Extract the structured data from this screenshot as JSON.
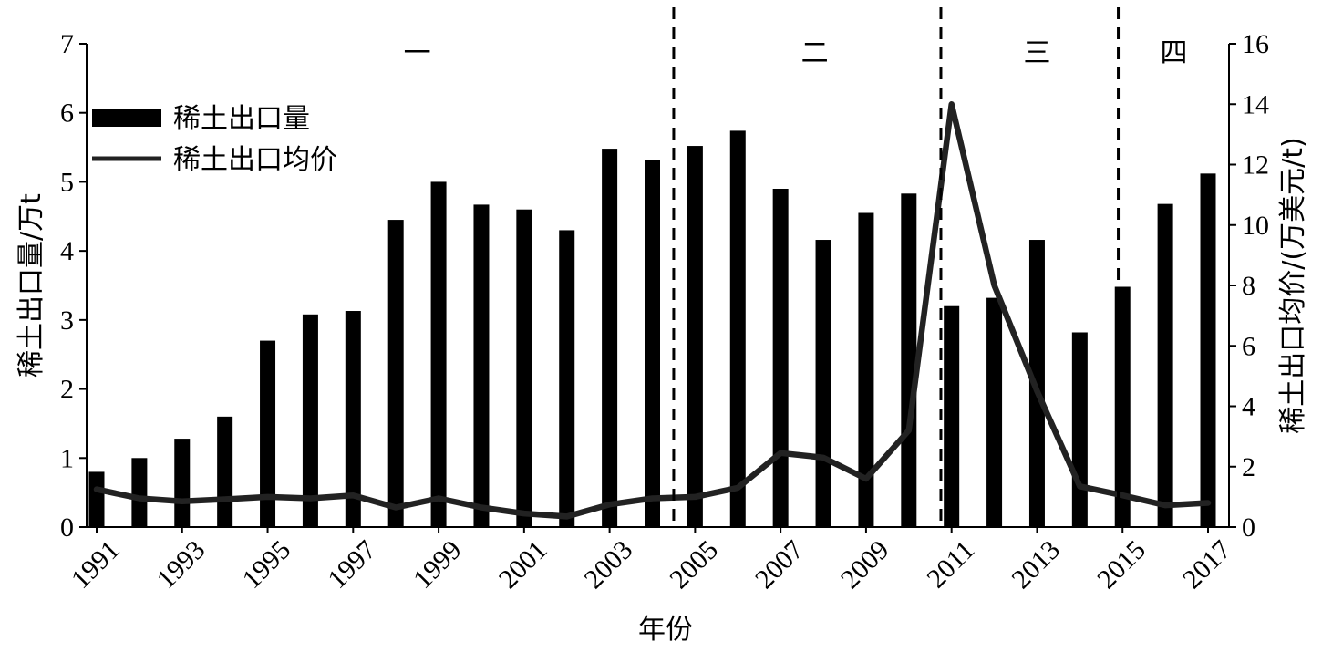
{
  "chart_data": {
    "type": "bar+line",
    "categories": [
      "1991",
      "1992",
      "1993",
      "1994",
      "1995",
      "1996",
      "1997",
      "1998",
      "1999",
      "2000",
      "2001",
      "2002",
      "2003",
      "2004",
      "2005",
      "2006",
      "2007",
      "2008",
      "2009",
      "2010",
      "2011",
      "2012",
      "2013",
      "2014",
      "2015",
      "2016",
      "2017"
    ],
    "x_tick_labels": [
      "1991",
      "1993",
      "1995",
      "1997",
      "1999",
      "2001",
      "2003",
      "2005",
      "2007",
      "2009",
      "2011",
      "2013",
      "2015",
      "2017"
    ],
    "series": [
      {
        "name": "稀土出口量",
        "type": "bar",
        "axis": "left",
        "color": "#000000",
        "values": [
          0.8,
          1.0,
          1.28,
          1.6,
          2.7,
          3.08,
          3.13,
          4.45,
          5.0,
          4.67,
          4.6,
          4.3,
          5.48,
          5.32,
          5.52,
          5.74,
          4.9,
          4.16,
          4.55,
          4.83,
          3.2,
          3.32,
          4.16,
          2.82,
          3.48,
          4.68,
          5.12
        ]
      },
      {
        "name": "稀土出口均价",
        "type": "line",
        "axis": "right",
        "color": "#222222",
        "values": [
          1.25,
          0.95,
          0.85,
          0.92,
          1.0,
          0.95,
          1.05,
          0.65,
          0.95,
          0.65,
          0.45,
          0.35,
          0.75,
          0.95,
          1.0,
          1.3,
          2.45,
          2.3,
          1.6,
          3.2,
          14.0,
          8.0,
          4.5,
          1.35,
          1.05,
          0.72,
          0.8
        ]
      }
    ],
    "xlabel": "年份",
    "ylabel_left": "稀土出口量/万t",
    "ylabel_right": "稀土出口均价/(万美元/t)",
    "ylim_left": [
      0,
      7
    ],
    "ylim_right": [
      0,
      16
    ],
    "yticks_left": [
      0,
      1,
      2,
      3,
      4,
      5,
      6,
      7
    ],
    "yticks_right": [
      0,
      2,
      4,
      6,
      8,
      10,
      12,
      14,
      16
    ],
    "phases": [
      {
        "label": "一",
        "year_center": 1998.5
      },
      {
        "label": "二",
        "year_center": 2007.8
      },
      {
        "label": "三",
        "year_center": 2013.0
      },
      {
        "label": "四",
        "year_center": 2016.2
      }
    ],
    "phase_dividers_year": [
      2004.5,
      2010.75,
      2014.9
    ],
    "legend_position": "top-left",
    "grid": false
  }
}
